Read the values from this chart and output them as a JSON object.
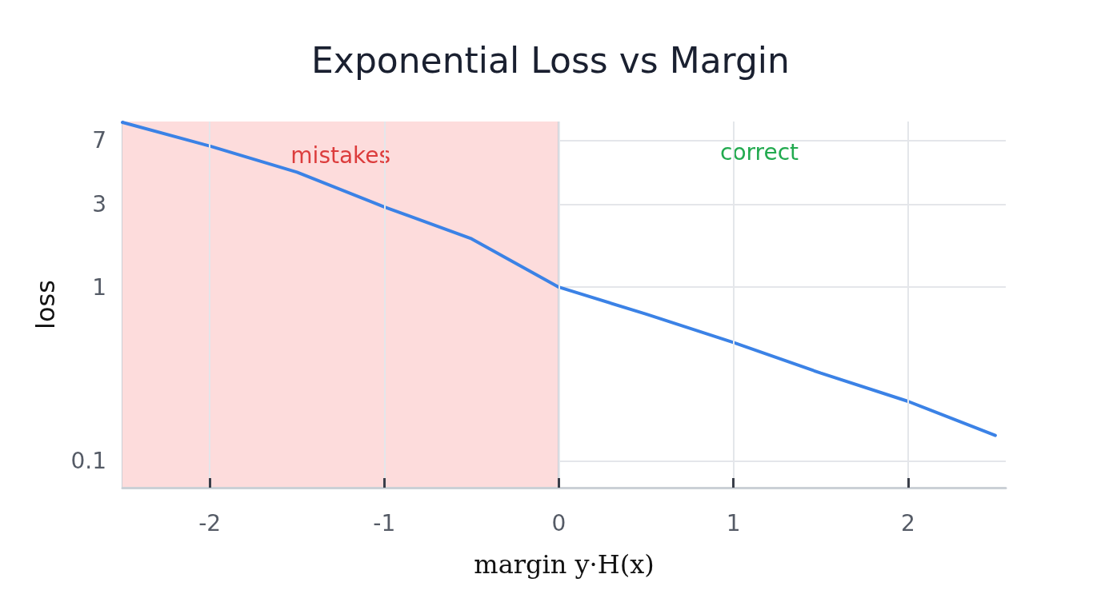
{
  "chart_data": {
    "type": "line",
    "title": "Exponential Loss vs Margin",
    "xlabel": "margin y·H(x)",
    "ylabel": "loss",
    "x": [
      -2.5,
      -2,
      -1.5,
      -1,
      -0.5,
      0,
      0.5,
      1,
      1.5,
      2,
      2.5
    ],
    "series": [
      {
        "color": "#3b82e6",
        "values": [
          8.9,
          6.5,
          4.6,
          2.9,
          1.9,
          1,
          0.7,
          0.48,
          0.32,
          0.22,
          0.14
        ]
      }
    ],
    "xlim": [
      -2.5,
      2.56
    ],
    "xticks": [
      -2,
      -1,
      0,
      1,
      2
    ],
    "ylim": [
      0.07,
      9
    ],
    "yticks": [
      0.1,
      1,
      3,
      7
    ],
    "log": "y",
    "grid": true,
    "marker": "none",
    "line_style": "solid",
    "bands": [
      {
        "axis": "x",
        "from": -2.5,
        "to": 0,
        "label": "mistakes",
        "color": "#fddcdc"
      }
    ],
    "ref_lines": [
      {
        "axis": "x",
        "value": 0,
        "color": "#cbd0d6"
      }
    ],
    "annotations": [
      "correct"
    ]
  }
}
